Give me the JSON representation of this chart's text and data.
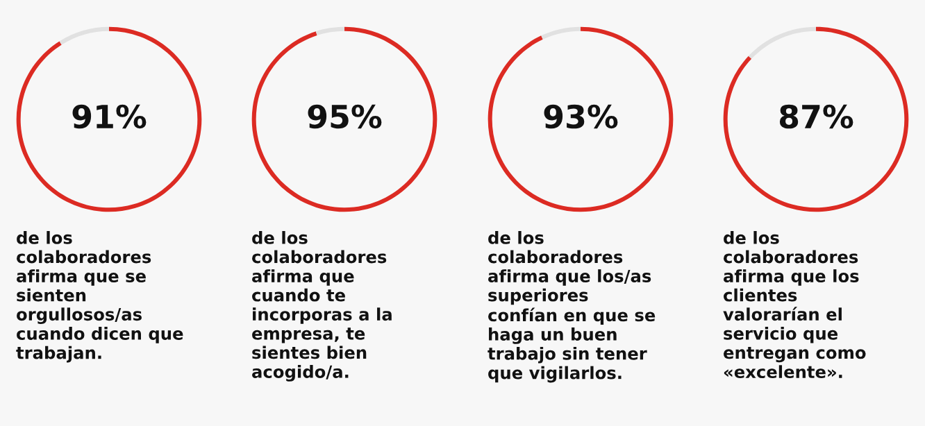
{
  "chart_data": [
    {
      "type": "donut",
      "categories": [
        null,
        null
      ],
      "values": [
        91,
        9
      ],
      "colors": [
        "#dc2b23",
        "#e1e1e1"
      ],
      "value_labels": [
        "91%",
        null
      ],
      "annotations": [
        "de los\ncolaboradores\nafirma que se\nsienten\norgullosos/as\ncuando dicen que\ntrabajan."
      ]
    },
    {
      "type": "donut",
      "categories": [
        null,
        null
      ],
      "values": [
        95,
        5
      ],
      "colors": [
        "#dc2b23",
        "#e1e1e1"
      ],
      "value_labels": [
        "95%",
        null
      ],
      "annotations": [
        "de los\ncolaboradores\nafirma que\ncuando te\nincorporas a la\nempresa, te\nsientes bien\nacogido/a."
      ]
    },
    {
      "type": "donut",
      "categories": [
        null,
        null
      ],
      "values": [
        93,
        7
      ],
      "colors": [
        "#dc2b23",
        "#e1e1e1"
      ],
      "value_labels": [
        "93%",
        null
      ],
      "annotations": [
        "de los\ncolaboradores\nafirma que los/as\nsuperiores\nconfían en que se\nhaga un buen\ntrabajo sin tener\nque vigilarlos."
      ]
    },
    {
      "type": "donut",
      "categories": [
        null,
        null
      ],
      "values": [
        87,
        13
      ],
      "colors": [
        "#dc2b23",
        "#e1e1e1"
      ],
      "value_labels": [
        "87%",
        null
      ],
      "annotations": [
        "de los\ncolaboradores\nafirma que los\nclientes\nvalorarían el\nservicio que\nentregan como\n«excelente»."
      ]
    }
  ]
}
